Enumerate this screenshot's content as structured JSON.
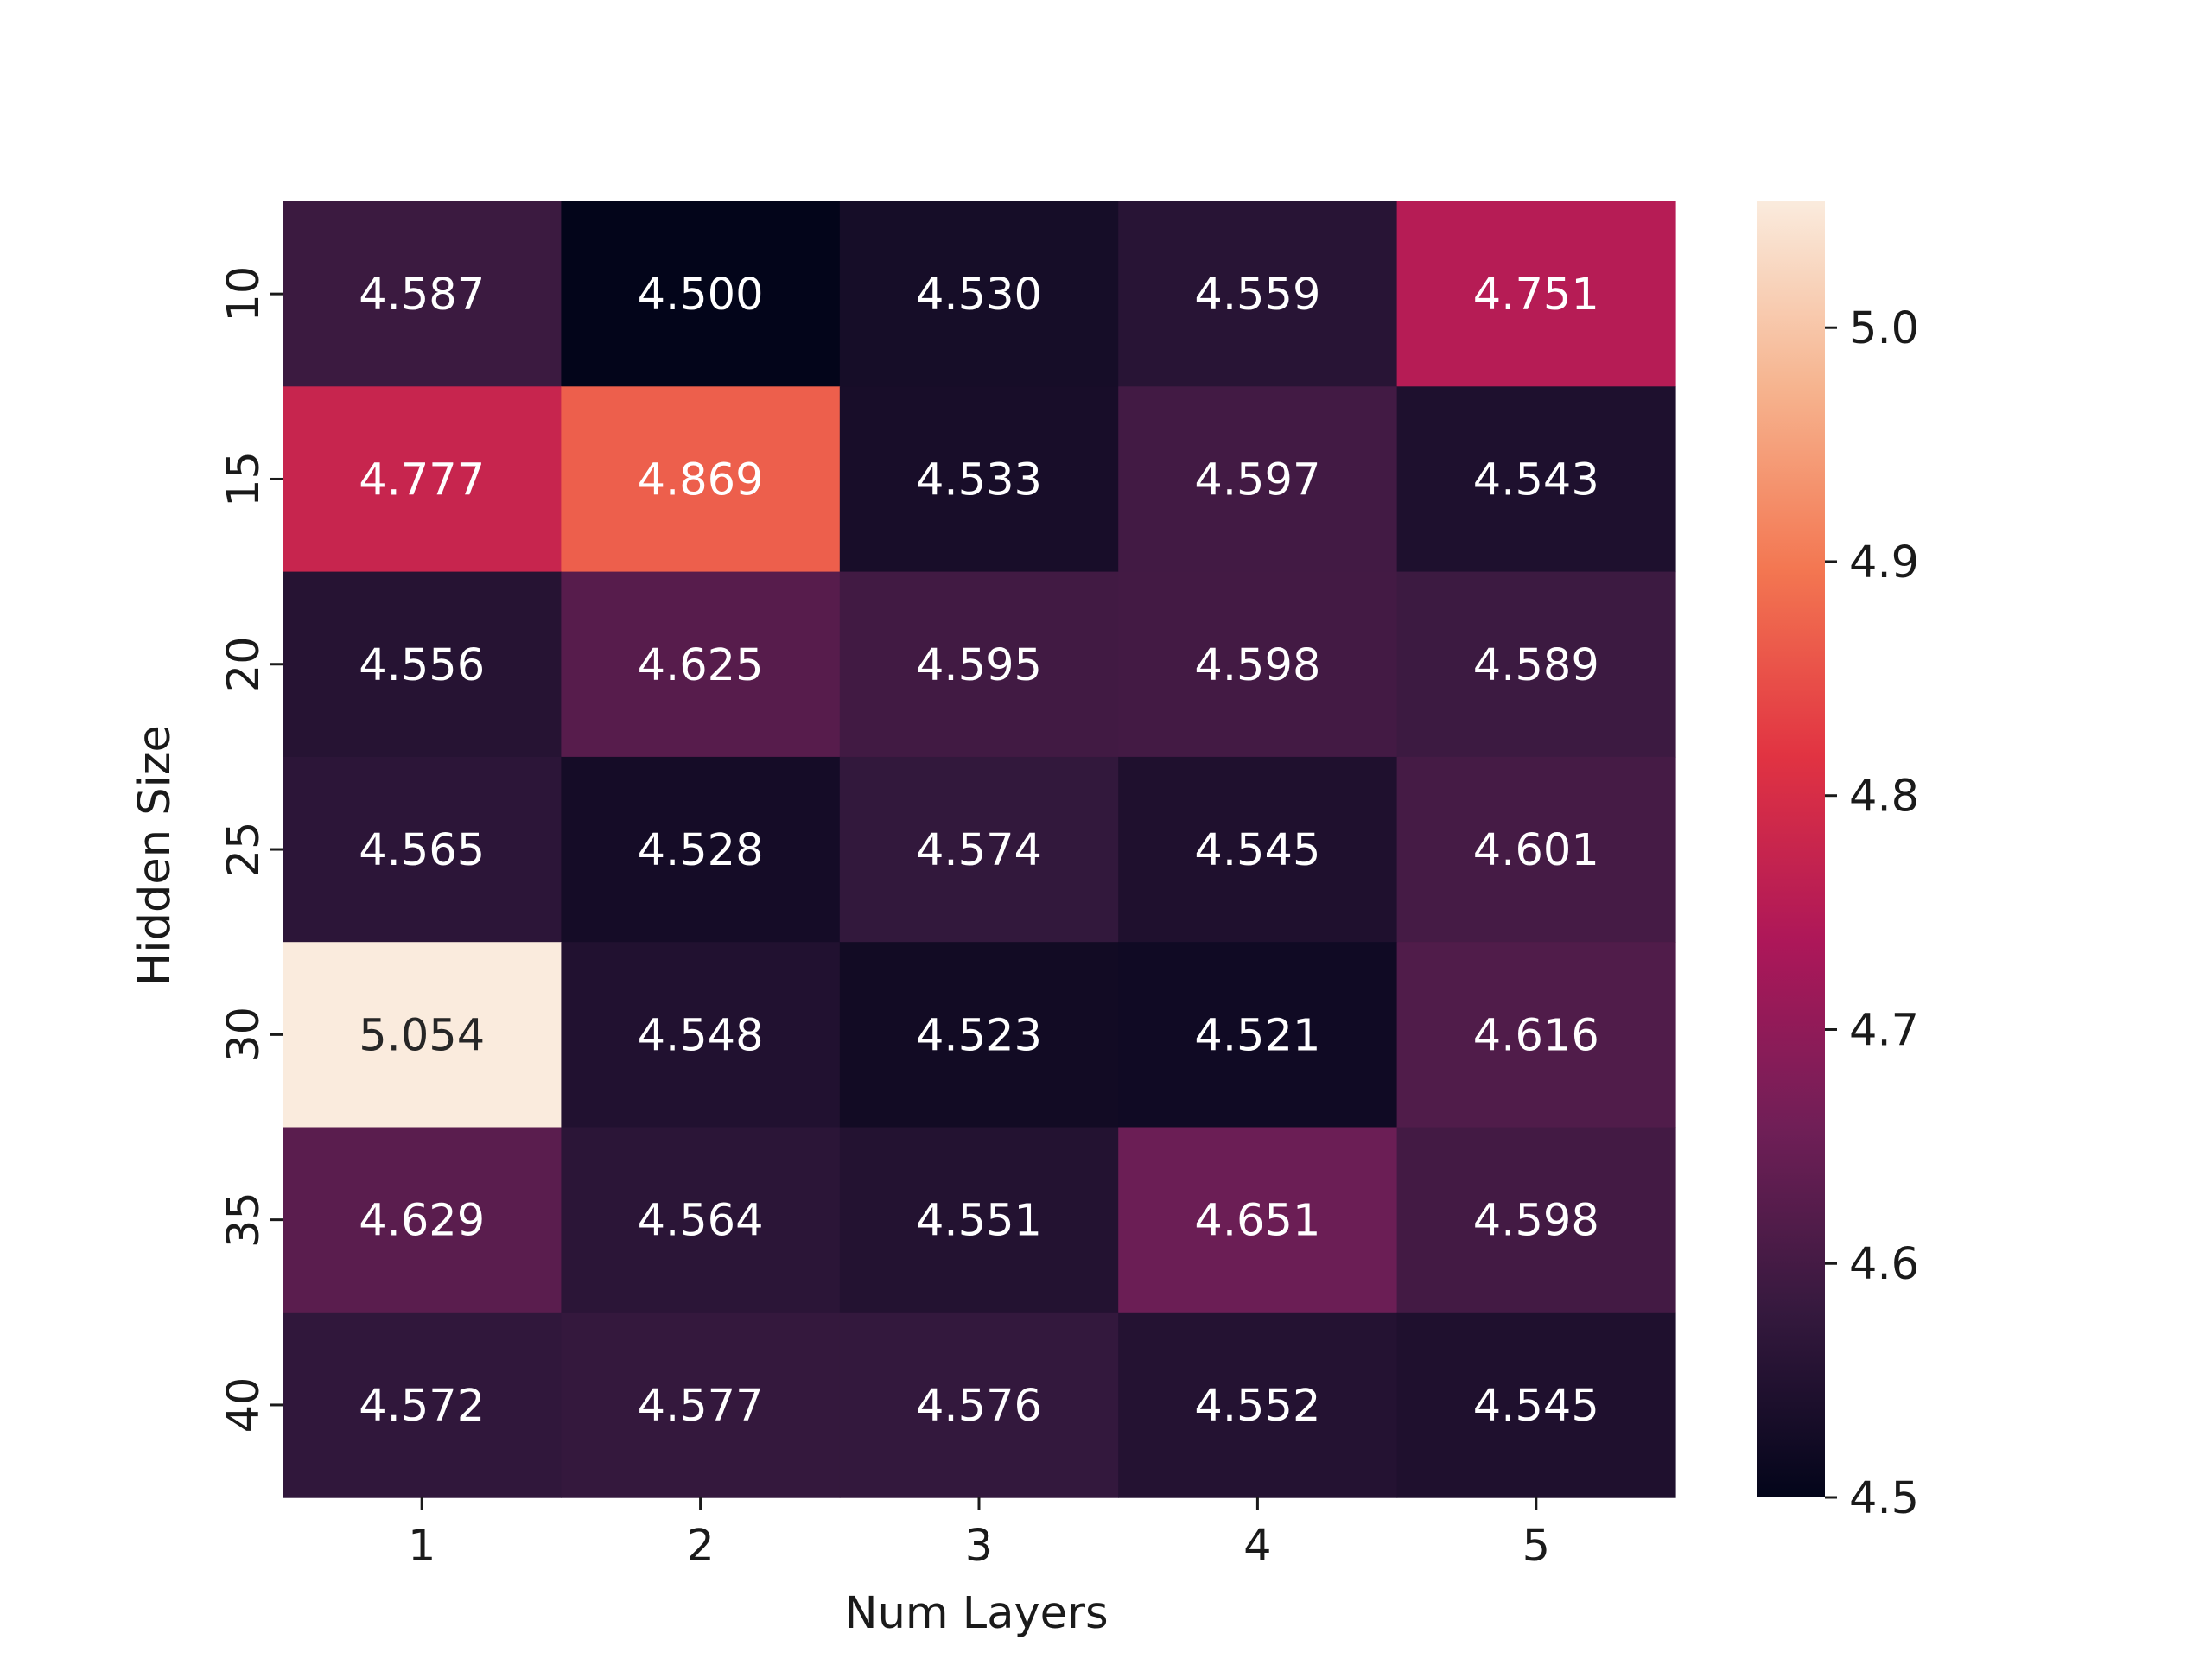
{
  "chart_data": {
    "type": "heatmap",
    "xlabel": "Num Layers",
    "ylabel": "Hidden Size",
    "x_categories": [
      "1",
      "2",
      "3",
      "4",
      "5"
    ],
    "y_categories": [
      "10",
      "15",
      "20",
      "25",
      "30",
      "35",
      "40"
    ],
    "values": [
      [
        4.587,
        4.5,
        4.53,
        4.559,
        4.751
      ],
      [
        4.777,
        4.869,
        4.533,
        4.597,
        4.543
      ],
      [
        4.556,
        4.625,
        4.595,
        4.598,
        4.589
      ],
      [
        4.565,
        4.528,
        4.574,
        4.545,
        4.601
      ],
      [
        5.054,
        4.548,
        4.523,
        4.521,
        4.616
      ],
      [
        4.629,
        4.564,
        4.551,
        4.651,
        4.598
      ],
      [
        4.572,
        4.577,
        4.576,
        4.552,
        4.545
      ]
    ],
    "value_format": "3 decimals",
    "colorbar": {
      "range": [
        4.5,
        5.054
      ],
      "ticks": [
        "4.5",
        "4.6",
        "4.7",
        "4.8",
        "4.9",
        "5.0"
      ],
      "colormap": "rocket",
      "colors": [
        "#03051a",
        "#35193e",
        "#701f57",
        "#ad1759",
        "#e13342",
        "#f37651",
        "#f6b48f",
        "#faebdd"
      ]
    },
    "grid": false,
    "colorbar_position": "right"
  }
}
